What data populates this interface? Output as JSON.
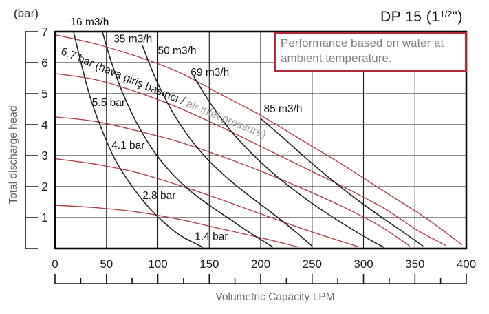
{
  "header": {
    "title_pre": "DP 15 (1",
    "title_frac": "1/2",
    "title_post": "\")"
  },
  "note": {
    "text": "Performance based on water at ambient temperature."
  },
  "y_axis": {
    "unit_label": "(bar)",
    "axis_label": "Total discharge head"
  },
  "x_axis": {
    "axis_label": "Volumetric Capacity LPM"
  },
  "colors": {
    "curve_red": "#ad4449",
    "curve_black": "#232323",
    "grid": "#141414",
    "axis_text": "#1c1c1c",
    "label_text": "#111111",
    "annotation_black": "#1a1a1a",
    "annotation_gray": "#9b9b9b",
    "note_border": "#b5293a",
    "note_text": "#7d7d7d"
  },
  "chart_data": {
    "type": "line",
    "title": "DP 15 (1 1/2\")",
    "xlabel": "Volumetric Capacity LPM",
    "ylabel": "Total discharge head (bar)",
    "xlim": [
      0,
      400
    ],
    "ylim": [
      0,
      7
    ],
    "x_ticks": [
      0,
      50,
      100,
      150,
      200,
      250,
      300,
      350,
      400
    ],
    "x_minor_step": 25,
    "y_ticks": [
      7,
      6,
      5,
      4,
      3,
      2,
      1
    ],
    "grid": true,
    "series": [
      {
        "name": "6.7 bar",
        "group": "air inlet pressure",
        "color_key": "curve_red",
        "points": [
          [
            0,
            6.9
          ],
          [
            40,
            6.6
          ],
          [
            80,
            6.2
          ],
          [
            120,
            5.7
          ],
          [
            160,
            5.0
          ],
          [
            200,
            4.3
          ],
          [
            240,
            3.5
          ],
          [
            280,
            2.7
          ],
          [
            320,
            1.85
          ],
          [
            360,
            1.0
          ],
          [
            396,
            0.12
          ]
        ]
      },
      {
        "name": "5.5 bar",
        "group": "air inlet pressure",
        "color_key": "curve_red",
        "points": [
          [
            0,
            5.65
          ],
          [
            40,
            5.45
          ],
          [
            80,
            5.05
          ],
          [
            120,
            4.55
          ],
          [
            160,
            3.95
          ],
          [
            200,
            3.3
          ],
          [
            240,
            2.65
          ],
          [
            280,
            2.0
          ],
          [
            320,
            1.3
          ],
          [
            352,
            0.6
          ],
          [
            380,
            0.1
          ]
        ]
      },
      {
        "name": "4.1 bar",
        "group": "air inlet pressure",
        "color_key": "curve_red",
        "points": [
          [
            0,
            4.25
          ],
          [
            40,
            4.1
          ],
          [
            80,
            3.8
          ],
          [
            120,
            3.45
          ],
          [
            160,
            3.0
          ],
          [
            200,
            2.5
          ],
          [
            240,
            1.95
          ],
          [
            280,
            1.35
          ],
          [
            315,
            0.75
          ],
          [
            345,
            0.08
          ]
        ]
      },
      {
        "name": "2.8 bar",
        "group": "air inlet pressure",
        "color_key": "curve_red",
        "points": [
          [
            0,
            2.9
          ],
          [
            40,
            2.72
          ],
          [
            80,
            2.45
          ],
          [
            120,
            2.05
          ],
          [
            160,
            1.6
          ],
          [
            200,
            1.12
          ],
          [
            240,
            0.65
          ],
          [
            270,
            0.32
          ],
          [
            295,
            0.06
          ]
        ]
      },
      {
        "name": "1.4 bar",
        "group": "air inlet pressure",
        "color_key": "curve_red",
        "points": [
          [
            0,
            1.4
          ],
          [
            40,
            1.32
          ],
          [
            80,
            1.18
          ],
          [
            120,
            0.95
          ],
          [
            160,
            0.65
          ],
          [
            200,
            0.35
          ],
          [
            237,
            0.05
          ]
        ]
      },
      {
        "name": "16 m3/h",
        "group": "air consumption",
        "color_key": "curve_black",
        "points": [
          [
            18,
            7.0
          ],
          [
            26,
            5.9
          ],
          [
            35,
            4.8
          ],
          [
            46,
            3.8
          ],
          [
            58,
            2.9
          ],
          [
            72,
            2.15
          ],
          [
            88,
            1.45
          ],
          [
            104,
            0.9
          ],
          [
            122,
            0.42
          ],
          [
            144,
            0.04
          ]
        ]
      },
      {
        "name": "35 m3/h",
        "group": "air consumption",
        "color_key": "curve_black",
        "points": [
          [
            46,
            7.0
          ],
          [
            56,
            5.9
          ],
          [
            68,
            4.85
          ],
          [
            82,
            3.9
          ],
          [
            97,
            3.1
          ],
          [
            113,
            2.45
          ],
          [
            130,
            1.9
          ],
          [
            150,
            1.4
          ],
          [
            170,
            0.95
          ],
          [
            190,
            0.5
          ],
          [
            212,
            0.05
          ]
        ]
      },
      {
        "name": "50 m3/h",
        "group": "air consumption",
        "color_key": "curve_black",
        "points": [
          [
            85,
            6.55
          ],
          [
            97,
            5.55
          ],
          [
            111,
            4.6
          ],
          [
            127,
            3.75
          ],
          [
            145,
            3.0
          ],
          [
            165,
            2.35
          ],
          [
            187,
            1.75
          ],
          [
            209,
            1.2
          ],
          [
            230,
            0.65
          ],
          [
            250,
            0.08
          ]
        ]
      },
      {
        "name": "69 m3/h",
        "group": "air consumption",
        "color_key": "curve_black",
        "points": [
          [
            135,
            5.55
          ],
          [
            152,
            4.65
          ],
          [
            171,
            3.8
          ],
          [
            192,
            3.05
          ],
          [
            215,
            2.35
          ],
          [
            240,
            1.7
          ],
          [
            266,
            1.1
          ],
          [
            290,
            0.6
          ],
          [
            308,
            0.25
          ],
          [
            320,
            0.04
          ]
        ]
      },
      {
        "name": "85 m3/h",
        "group": "air consumption",
        "color_key": "curve_black",
        "points": [
          [
            200,
            4.2
          ],
          [
            221,
            3.6
          ],
          [
            243,
            2.95
          ],
          [
            266,
            2.3
          ],
          [
            291,
            1.65
          ],
          [
            316,
            1.05
          ],
          [
            340,
            0.5
          ],
          [
            358,
            0.08
          ]
        ]
      }
    ],
    "curve_labels": [
      {
        "text": "16 m3/h",
        "lpm": 15,
        "bar": 7.2
      },
      {
        "text": "35 m3/h",
        "lpm": 57,
        "bar": 6.66
      },
      {
        "text": "50 m3/h",
        "lpm": 100,
        "bar": 6.28
      },
      {
        "text": "69 m3/h",
        "lpm": 132,
        "bar": 5.58
      },
      {
        "text": "85 m3/h",
        "lpm": 203,
        "bar": 4.4
      },
      {
        "text": "5.5 bar",
        "lpm": 36,
        "bar": 4.6
      },
      {
        "text": "4.1 bar",
        "lpm": 55,
        "bar": 3.22
      },
      {
        "text": "2.8 bar",
        "lpm": 85,
        "bar": 1.6
      },
      {
        "text": "1.4 bar",
        "lpm": 136,
        "bar": 0.28
      }
    ],
    "annotation": {
      "parts": [
        {
          "text": "6.7 bar (hava giriş basıncı / ",
          "color_key": "annotation_black"
        },
        {
          "text": "air inlet pressure)",
          "color_key": "annotation_gray"
        }
      ],
      "lpm": 5,
      "bar": 6.28,
      "rotate_deg": 22.5
    }
  }
}
